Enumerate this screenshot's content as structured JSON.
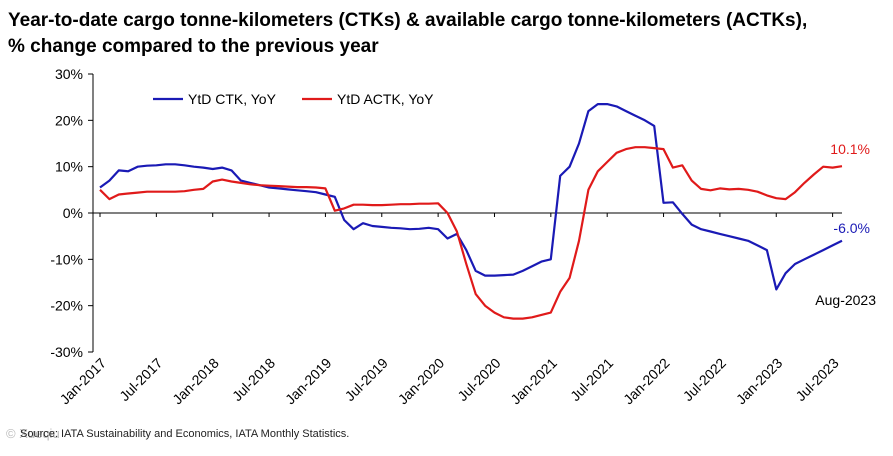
{
  "chart_data": {
    "type": "line",
    "title_line1": "Year-to-date cargo tonne-kilometers (CTKs) & available cargo tonne-kilometers (ACTKs),",
    "title_line2": "% change compared to the previous year",
    "ylim": [
      -30,
      30
    ],
    "yticks": [
      -30,
      -20,
      -10,
      0,
      10,
      20,
      30
    ],
    "ytick_labels": [
      "-30%",
      "-20%",
      "-10%",
      "0%",
      "10%",
      "20%",
      "30%"
    ],
    "xlim": [
      "Jan-2017",
      "Aug-2023"
    ],
    "xtick_labels": [
      "Jan-2017",
      "Jul-2017",
      "Jan-2018",
      "Jul-2018",
      "Jan-2019",
      "Jul-2019",
      "Jan-2020",
      "Jul-2020",
      "Jan-2021",
      "Jul-2021",
      "Jan-2022",
      "Jul-2022",
      "Jan-2023",
      "Jul-2023"
    ],
    "legend_position": "top-left",
    "grid": false,
    "series": [
      {
        "name": "YtD CTK, YoY",
        "color": "#1a1ab5",
        "values": [
          5.5,
          7.0,
          9.2,
          9.0,
          10.0,
          10.2,
          10.3,
          10.5,
          10.5,
          10.3,
          10.0,
          9.8,
          9.5,
          9.8,
          9.2,
          7.0,
          6.5,
          6.0,
          5.5,
          5.3,
          5.1,
          4.9,
          4.7,
          4.5,
          4.0,
          3.5,
          -1.5,
          -3.5,
          -2.2,
          -2.8,
          -3.0,
          -3.2,
          -3.3,
          -3.5,
          -3.4,
          -3.2,
          -3.5,
          -5.5,
          -4.5,
          -8.0,
          -12.5,
          -13.5,
          -13.5,
          -13.4,
          -13.3,
          -12.5,
          -11.5,
          -10.5,
          -10.0,
          8.0,
          10.0,
          15.0,
          22.0,
          23.5,
          23.5,
          23.0,
          22.0,
          21.0,
          20.0,
          18.8,
          2.2,
          2.3,
          -0.2,
          -2.5,
          -3.5,
          -4.0,
          -4.5,
          -5.0,
          -5.5,
          -6.0,
          -7.0,
          -8.0,
          -16.5,
          -13.0,
          -11.0,
          -10.0,
          -9.0,
          -8.0,
          -7.0,
          -6.0
        ],
        "end_label": "-6.0%"
      },
      {
        "name": "YtD ACTK, YoY",
        "color": "#e01a1a",
        "values": [
          5.0,
          3.0,
          4.0,
          4.2,
          4.4,
          4.6,
          4.6,
          4.6,
          4.6,
          4.7,
          5.0,
          5.2,
          6.8,
          7.2,
          6.8,
          6.5,
          6.2,
          6.0,
          5.9,
          5.8,
          5.7,
          5.6,
          5.6,
          5.5,
          5.3,
          0.5,
          1.0,
          1.8,
          1.8,
          1.7,
          1.7,
          1.8,
          1.9,
          1.9,
          2.0,
          2.0,
          2.1,
          0.0,
          -4.0,
          -11.0,
          -17.5,
          -20.0,
          -21.5,
          -22.5,
          -22.8,
          -22.8,
          -22.5,
          -22.0,
          -21.5,
          -17.0,
          -14.0,
          -6.0,
          5.0,
          9.0,
          11.0,
          13.0,
          13.8,
          14.2,
          14.2,
          14.0,
          13.8,
          9.8,
          10.3,
          7.0,
          5.2,
          4.9,
          5.3,
          5.1,
          5.2,
          5.0,
          4.6,
          3.8,
          3.2,
          3.0,
          4.5,
          6.5,
          8.3,
          10.0,
          9.8,
          10.1
        ],
        "end_label": "10.1%"
      }
    ],
    "annotations": [
      {
        "text": "Aug-2023",
        "color": "#000000"
      }
    ]
  },
  "footer": {
    "source": "Source: IATA Sustainability and Economics, IATA Monthly Statistics.",
    "watermark": "© Xueqiu"
  }
}
